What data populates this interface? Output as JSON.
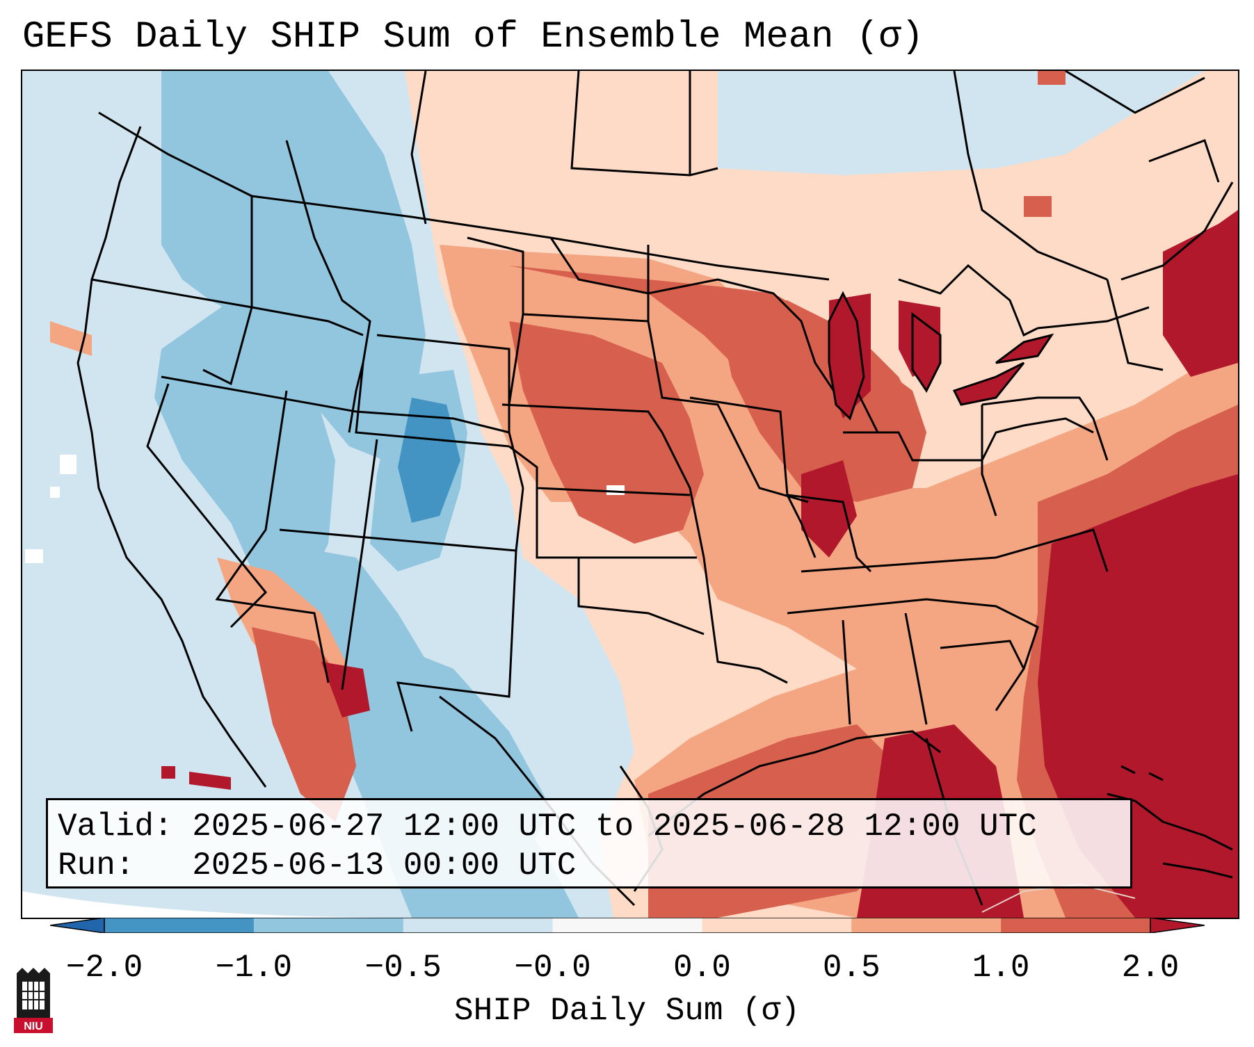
{
  "title": "GEFS Daily SHIP Sum of Ensemble Mean (σ)",
  "info": {
    "valid_label": "Valid:",
    "valid_value": "2025-06-27 12:00 UTC to 2025-06-28 12:00 UTC",
    "run_label": "Run:",
    "run_value": "2025-06-13 00:00 UTC"
  },
  "colorbar": {
    "label": "SHIP Daily Sum (σ)",
    "ticks": [
      "−2.0",
      "−1.0",
      "−0.5",
      "−0.0",
      "0.0",
      "0.5",
      "1.0",
      "2.0"
    ],
    "colors": [
      "#4393c3",
      "#92c5de",
      "#d1e5f0",
      "#f7f7f7",
      "#fddbc7",
      "#f4a582",
      "#d6604d",
      "#b2182b"
    ],
    "extend": "both"
  },
  "logo": {
    "text": "NIU"
  }
}
